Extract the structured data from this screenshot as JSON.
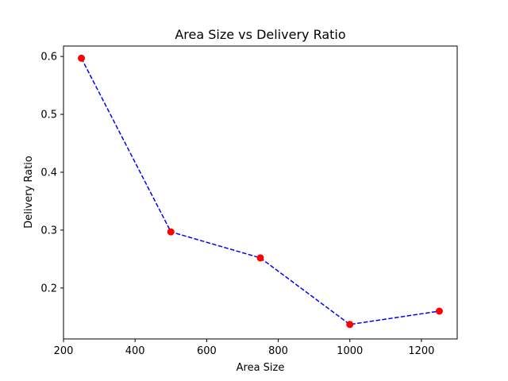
{
  "chart_data": {
    "type": "line",
    "title": "Area Size vs Delivery Ratio",
    "xlabel": "Area Size",
    "ylabel": "Delivery Ratio",
    "xlim": [
      200,
      1300
    ],
    "ylim": [
      0.112,
      0.618
    ],
    "x_ticks": [
      200,
      400,
      600,
      800,
      1000,
      1200
    ],
    "y_ticks": [
      0.2,
      0.3,
      0.4,
      0.5,
      0.6
    ],
    "x_tick_labels": [
      "200",
      "400",
      "600",
      "800",
      "1000",
      "1200"
    ],
    "y_tick_labels": [
      "0.2",
      "0.3",
      "0.4",
      "0.5",
      "0.6"
    ],
    "grid": false,
    "series": [
      {
        "x": [
          250,
          500,
          750,
          1000,
          1250
        ],
        "values": [
          0.597,
          0.297,
          0.252,
          0.137,
          0.16
        ],
        "line_color": "#0000ff",
        "line_style": "dashed",
        "marker_color": "#ff0000",
        "marker": "circle"
      }
    ]
  }
}
